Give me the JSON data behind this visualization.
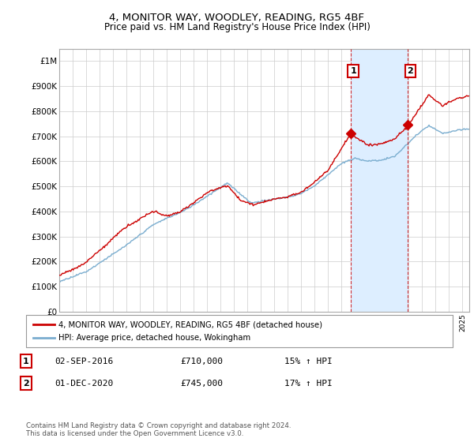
{
  "title": "4, MONITOR WAY, WOODLEY, READING, RG5 4BF",
  "subtitle": "Price paid vs. HM Land Registry's House Price Index (HPI)",
  "legend_line1": "4, MONITOR WAY, WOODLEY, READING, RG5 4BF (detached house)",
  "legend_line2": "HPI: Average price, detached house, Wokingham",
  "annotation1_date": "02-SEP-2016",
  "annotation1_price": "£710,000",
  "annotation1_hpi": "15% ↑ HPI",
  "annotation2_date": "01-DEC-2020",
  "annotation2_price": "£745,000",
  "annotation2_hpi": "17% ↑ HPI",
  "footer": "Contains HM Land Registry data © Crown copyright and database right 2024.\nThis data is licensed under the Open Government Licence v3.0.",
  "red_color": "#cc0000",
  "blue_color": "#7aadcf",
  "shade_color": "#ddeeff",
  "ylim_min": 0,
  "ylim_max": 1050000,
  "yticks": [
    0,
    100000,
    200000,
    300000,
    400000,
    500000,
    600000,
    700000,
    800000,
    900000,
    1000000
  ],
  "ytick_labels": [
    "£0",
    "£100K",
    "£200K",
    "£300K",
    "£400K",
    "£500K",
    "£600K",
    "£700K",
    "£800K",
    "£900K",
    "£1M"
  ],
  "xlim_start": 1995.0,
  "xlim_end": 2025.5,
  "sale1_x": 2016.667,
  "sale1_y": 710000,
  "sale2_x": 2020.917,
  "sale2_y": 745000
}
